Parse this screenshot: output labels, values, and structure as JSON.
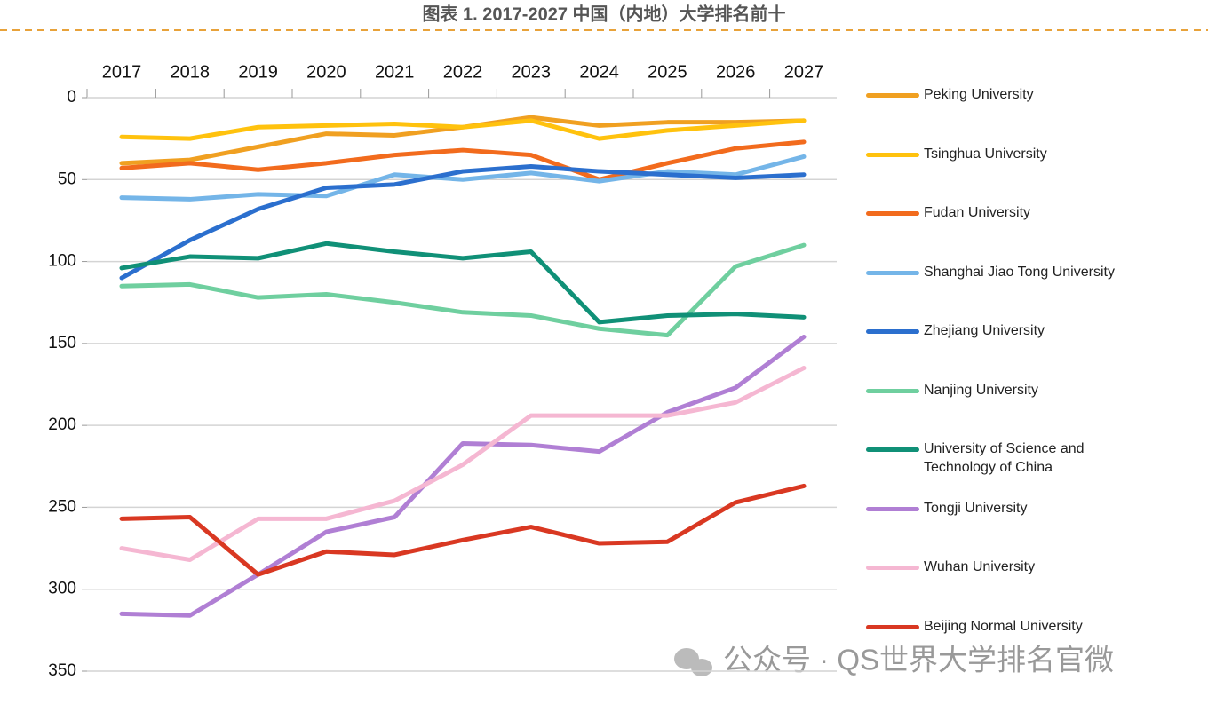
{
  "chart_data": {
    "type": "line",
    "title": "图表 1. 2017-2027 中国（内地）大学排名前十",
    "categories": [
      "2017",
      "2018",
      "2019",
      "2020",
      "2021",
      "2022",
      "2023",
      "2024",
      "2025",
      "2026",
      "2027"
    ],
    "ylim": [
      0,
      350
    ],
    "yticks": [
      0,
      50,
      100,
      150,
      200,
      250,
      300,
      350
    ],
    "y_inverted": true,
    "x_axis_position": "top",
    "grid": true,
    "legend": "right",
    "series": [
      {
        "name": "Peking University",
        "color": "#f0a021",
        "values": [
          40,
          38,
          30,
          22,
          23,
          18,
          12,
          17,
          15,
          15,
          14
        ]
      },
      {
        "name": "Tsinghua University",
        "color": "#ffc20e",
        "values": [
          24,
          25,
          18,
          17,
          16,
          18,
          14,
          25,
          20,
          17,
          14
        ]
      },
      {
        "name": "Fudan University",
        "color": "#f26b1d",
        "values": [
          43,
          40,
          44,
          40,
          35,
          32,
          35,
          50,
          40,
          31,
          27
        ]
      },
      {
        "name": "Shanghai Jiao Tong University",
        "color": "#74b5e8",
        "values": [
          61,
          62,
          59,
          60,
          47,
          50,
          46,
          51,
          45,
          47,
          36
        ]
      },
      {
        "name": "Zhejiang University",
        "color": "#2b6fce",
        "values": [
          110,
          87,
          68,
          55,
          53,
          45,
          42,
          45,
          47,
          49,
          47
        ]
      },
      {
        "name": "Nanjing University",
        "color": "#6fcf9f",
        "values": [
          115,
          114,
          122,
          120,
          125,
          131,
          133,
          141,
          145,
          103,
          90
        ]
      },
      {
        "name": "University of Science and Technology of China",
        "color": "#109077",
        "values": [
          104,
          97,
          98,
          89,
          94,
          98,
          94,
          137,
          133,
          132,
          134
        ]
      },
      {
        "name": "Tongji University",
        "color": "#b07fd4",
        "values": [
          315,
          316,
          291,
          265,
          256,
          211,
          212,
          216,
          192,
          177,
          146
        ]
      },
      {
        "name": "Wuhan University",
        "color": "#f5b7d2",
        "values": [
          275,
          282,
          257,
          257,
          246,
          224,
          194,
          194,
          194,
          186,
          165
        ]
      },
      {
        "name": "Beijing Normal University",
        "color": "#d93822",
        "values": [
          257,
          256,
          291,
          277,
          279,
          270,
          262,
          272,
          271,
          247,
          237
        ]
      }
    ]
  },
  "watermark": "公众号 · QS世界大学排名官微"
}
